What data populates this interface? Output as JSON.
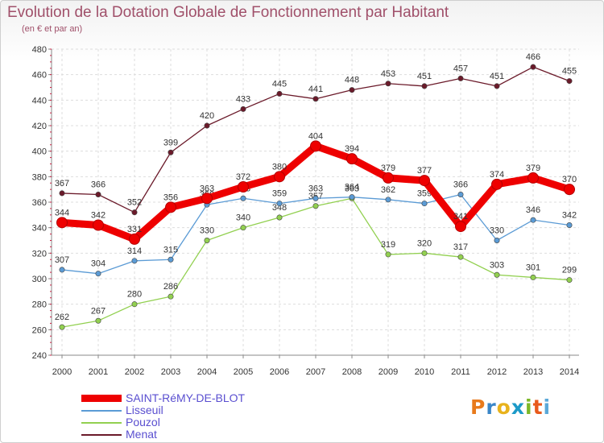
{
  "title": "Evolution de la Dotation Globale de Fonctionnement par Habitant",
  "subtitle": "(en € et par an)",
  "logo": "Proxiti",
  "chart_data": {
    "type": "line",
    "title": "Evolution de la Dotation Globale de Fonctionnement par Habitant",
    "ylabel": "(en € et par an)",
    "xlabel": "",
    "ylim": [
      240,
      480
    ],
    "yticks": [
      240,
      260,
      280,
      300,
      320,
      340,
      360,
      380,
      400,
      420,
      440,
      460,
      480
    ],
    "grid": true,
    "legend_position": "bottom-left",
    "categories": [
      "2000",
      "2001",
      "2002",
      "2003",
      "2004",
      "2005",
      "2006",
      "2007",
      "2008",
      "2009",
      "2010",
      "2011",
      "2012",
      "2013",
      "2014"
    ],
    "series": [
      {
        "name": "SAINT-RéMY-DE-BLOT",
        "color": "#ee0000",
        "values": [
          344,
          342,
          331,
          356,
          363,
          372,
          380,
          404,
          394,
          379,
          377,
          341,
          374,
          379,
          370
        ]
      },
      {
        "name": "Lisseuil",
        "color": "#5b9bd5",
        "values": [
          307,
          304,
          314,
          315,
          358,
          363,
          359,
          363,
          364,
          362,
          359,
          366,
          330,
          346,
          342
        ]
      },
      {
        "name": "Pouzol",
        "color": "#92d050",
        "values": [
          262,
          267,
          280,
          286,
          330,
          340,
          348,
          357,
          363,
          319,
          320,
          317,
          303,
          301,
          299
        ]
      },
      {
        "name": "Menat",
        "color": "#6b1a2a",
        "values": [
          367,
          366,
          352,
          399,
          420,
          433,
          445,
          441,
          448,
          453,
          451,
          457,
          451,
          466,
          455
        ]
      }
    ]
  }
}
